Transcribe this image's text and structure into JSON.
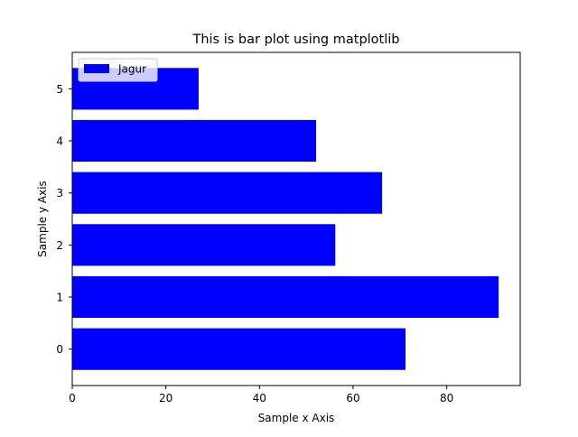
{
  "chart_data": {
    "type": "bar",
    "orientation": "horizontal",
    "title": "This is bar plot using matplotlib",
    "xlabel": "Sample x Axis",
    "ylabel": "Sample y Axis",
    "categories": [
      "0",
      "1",
      "2",
      "3",
      "4",
      "5"
    ],
    "series": [
      {
        "name": "Jagur",
        "values": [
          71.2,
          91.1,
          56.2,
          66.2,
          52.1,
          27.0
        ],
        "color": "#0000ff"
      }
    ],
    "xlim": [
      0,
      95.7
    ],
    "xticks": [
      "0",
      "20",
      "40",
      "60",
      "80"
    ],
    "legend": {
      "position": "top-left"
    },
    "grid": false
  }
}
